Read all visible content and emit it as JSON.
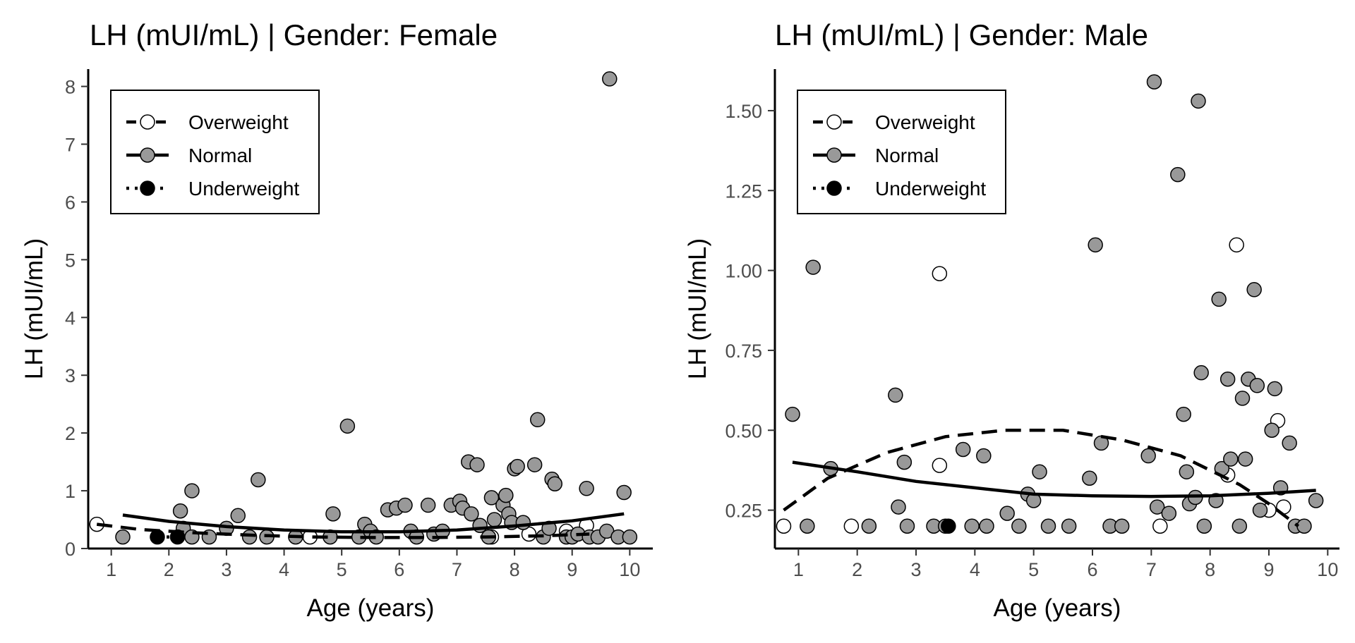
{
  "figure": {
    "colors": {
      "overweight": "#ffffff",
      "normal": "#999999",
      "underweight": "#000000",
      "point_stroke": "#000000"
    },
    "legend_placement": "top-left"
  },
  "chart_data": [
    {
      "type": "scatter",
      "title": "LH (mUI/mL) | Gender: Female",
      "xlabel": "Age (years)",
      "ylabel": "LH (mUI/mL)",
      "xlim": [
        0.6,
        10.4
      ],
      "ylim": [
        0,
        8.3
      ],
      "x_ticks": [
        1,
        2,
        3,
        4,
        5,
        6,
        7,
        8,
        9,
        10
      ],
      "y_ticks": [
        0,
        1,
        2,
        3,
        4,
        5,
        6,
        7,
        8
      ],
      "y_tick_labels": [
        "0",
        "1",
        "2",
        "3",
        "4",
        "5",
        "6",
        "7",
        "8"
      ],
      "grid": false,
      "legend": {
        "placement": "top-left",
        "entries": [
          "Overweight",
          "Normal",
          "Underweight"
        ]
      },
      "series": [
        {
          "name": "Overweight",
          "fill": "#ffffff",
          "line_style": "dashed",
          "points": [
            [
              0.75,
              0.42
            ],
            [
              4.45,
              0.2
            ],
            [
              7.6,
              0.2
            ],
            [
              8.25,
              0.25
            ],
            [
              8.9,
              0.3
            ],
            [
              9.25,
              0.4
            ]
          ],
          "trend": [
            [
              0.75,
              0.42
            ],
            [
              1.5,
              0.33
            ],
            [
              2.5,
              0.27
            ],
            [
              3.5,
              0.23
            ],
            [
              4.5,
              0.2
            ],
            [
              5.5,
              0.19
            ],
            [
              6.5,
              0.19
            ],
            [
              7.5,
              0.2
            ],
            [
              8.5,
              0.22
            ],
            [
              9.3,
              0.25
            ]
          ]
        },
        {
          "name": "Normal",
          "fill": "#999999",
          "line_style": "solid",
          "points": [
            [
              1.2,
              0.2
            ],
            [
              2.2,
              0.65
            ],
            [
              2.25,
              0.35
            ],
            [
              2.4,
              1.0
            ],
            [
              2.4,
              0.2
            ],
            [
              2.7,
              0.2
            ],
            [
              3.0,
              0.35
            ],
            [
              3.2,
              0.57
            ],
            [
              3.4,
              0.2
            ],
            [
              3.55,
              1.19
            ],
            [
              3.7,
              0.2
            ],
            [
              4.2,
              0.2
            ],
            [
              4.8,
              0.2
            ],
            [
              4.85,
              0.6
            ],
            [
              5.1,
              2.12
            ],
            [
              5.3,
              0.2
            ],
            [
              5.4,
              0.42
            ],
            [
              5.5,
              0.3
            ],
            [
              5.6,
              0.2
            ],
            [
              5.8,
              0.67
            ],
            [
              5.95,
              0.7
            ],
            [
              6.1,
              0.75
            ],
            [
              6.2,
              0.3
            ],
            [
              6.3,
              0.2
            ],
            [
              6.5,
              0.75
            ],
            [
              6.6,
              0.25
            ],
            [
              6.75,
              0.3
            ],
            [
              6.9,
              0.75
            ],
            [
              7.05,
              0.82
            ],
            [
              7.1,
              0.7
            ],
            [
              7.2,
              1.5
            ],
            [
              7.25,
              0.6
            ],
            [
              7.35,
              1.45
            ],
            [
              7.4,
              0.4
            ],
            [
              7.55,
              0.2
            ],
            [
              7.6,
              0.88
            ],
            [
              7.65,
              0.5
            ],
            [
              7.8,
              0.75
            ],
            [
              7.85,
              0.92
            ],
            [
              7.9,
              0.6
            ],
            [
              7.95,
              0.45
            ],
            [
              8.0,
              1.38
            ],
            [
              8.05,
              1.42
            ],
            [
              8.15,
              0.45
            ],
            [
              8.35,
              1.45
            ],
            [
              8.4,
              2.23
            ],
            [
              8.5,
              0.2
            ],
            [
              8.6,
              0.35
            ],
            [
              8.65,
              1.2
            ],
            [
              8.7,
              1.12
            ],
            [
              8.9,
              0.2
            ],
            [
              9.0,
              0.2
            ],
            [
              9.1,
              0.25
            ],
            [
              9.25,
              1.04
            ],
            [
              9.3,
              0.2
            ],
            [
              9.45,
              0.2
            ],
            [
              9.6,
              0.3
            ],
            [
              9.65,
              8.13
            ],
            [
              9.8,
              0.2
            ],
            [
              9.9,
              0.97
            ],
            [
              10.0,
              0.2
            ]
          ],
          "trend": [
            [
              1.2,
              0.58
            ],
            [
              2.0,
              0.47
            ],
            [
              3.0,
              0.38
            ],
            [
              4.0,
              0.32
            ],
            [
              5.0,
              0.29
            ],
            [
              6.0,
              0.29
            ],
            [
              7.0,
              0.32
            ],
            [
              8.0,
              0.39
            ],
            [
              9.0,
              0.48
            ],
            [
              9.9,
              0.6
            ]
          ]
        },
        {
          "name": "Underweight",
          "fill": "#000000",
          "line_style": "dotted",
          "points": [
            [
              1.8,
              0.2
            ],
            [
              2.15,
              0.2
            ]
          ],
          "trend": [
            [
              1.8,
              0.2
            ],
            [
              2.2,
              0.2
            ]
          ]
        }
      ]
    },
    {
      "type": "scatter",
      "title": "LH (mUI/mL) | Gender: Male",
      "xlabel": "Age (years)",
      "ylabel": "LH (mUI/mL)",
      "xlim": [
        0.6,
        10.2
      ],
      "ylim": [
        0.13,
        1.63
      ],
      "x_ticks": [
        1,
        2,
        3,
        4,
        5,
        6,
        7,
        8,
        9,
        10
      ],
      "y_ticks": [
        0.25,
        0.5,
        0.75,
        1.0,
        1.25,
        1.5
      ],
      "y_tick_labels": [
        "0.25",
        "0.50",
        "0.75",
        "1.00",
        "1.25",
        "1.50"
      ],
      "grid": false,
      "legend": {
        "placement": "top-left",
        "entries": [
          "Overweight",
          "Normal",
          "Underweight"
        ]
      },
      "series": [
        {
          "name": "Overweight",
          "fill": "#ffffff",
          "line_style": "dashed",
          "points": [
            [
              0.75,
              0.2
            ],
            [
              1.9,
              0.2
            ],
            [
              3.4,
              0.99
            ],
            [
              3.4,
              0.39
            ],
            [
              7.15,
              0.2
            ],
            [
              8.3,
              0.36
            ],
            [
              8.45,
              1.08
            ],
            [
              9.0,
              0.25
            ],
            [
              9.15,
              0.53
            ],
            [
              9.25,
              0.26
            ]
          ],
          "trend": [
            [
              0.75,
              0.25
            ],
            [
              1.5,
              0.35
            ],
            [
              2.5,
              0.43
            ],
            [
              3.5,
              0.48
            ],
            [
              4.5,
              0.5
            ],
            [
              5.5,
              0.5
            ],
            [
              6.5,
              0.47
            ],
            [
              7.5,
              0.42
            ],
            [
              8.5,
              0.33
            ],
            [
              9.0,
              0.27
            ],
            [
              9.5,
              0.2
            ]
          ]
        },
        {
          "name": "Normal",
          "fill": "#999999",
          "line_style": "solid",
          "points": [
            [
              0.9,
              0.55
            ],
            [
              1.15,
              0.2
            ],
            [
              1.25,
              1.01
            ],
            [
              1.55,
              0.38
            ],
            [
              2.2,
              0.2
            ],
            [
              2.65,
              0.61
            ],
            [
              2.7,
              0.26
            ],
            [
              2.8,
              0.4
            ],
            [
              2.85,
              0.2
            ],
            [
              3.3,
              0.2
            ],
            [
              3.5,
              0.2
            ],
            [
              3.8,
              0.44
            ],
            [
              3.95,
              0.2
            ],
            [
              4.15,
              0.42
            ],
            [
              4.2,
              0.2
            ],
            [
              4.55,
              0.24
            ],
            [
              4.75,
              0.2
            ],
            [
              4.9,
              0.3
            ],
            [
              5.0,
              0.28
            ],
            [
              5.1,
              0.37
            ],
            [
              5.25,
              0.2
            ],
            [
              5.6,
              0.2
            ],
            [
              5.95,
              0.35
            ],
            [
              6.05,
              1.08
            ],
            [
              6.15,
              0.46
            ],
            [
              6.3,
              0.2
            ],
            [
              6.5,
              0.2
            ],
            [
              6.95,
              0.42
            ],
            [
              7.05,
              1.59
            ],
            [
              7.1,
              0.26
            ],
            [
              7.3,
              0.24
            ],
            [
              7.45,
              1.3
            ],
            [
              7.55,
              0.55
            ],
            [
              7.6,
              0.37
            ],
            [
              7.65,
              0.27
            ],
            [
              7.75,
              0.29
            ],
            [
              7.8,
              1.53
            ],
            [
              7.85,
              0.68
            ],
            [
              7.9,
              0.2
            ],
            [
              8.1,
              0.28
            ],
            [
              8.15,
              0.91
            ],
            [
              8.2,
              0.38
            ],
            [
              8.3,
              0.66
            ],
            [
              8.35,
              0.41
            ],
            [
              8.5,
              0.2
            ],
            [
              8.55,
              0.6
            ],
            [
              8.6,
              0.41
            ],
            [
              8.65,
              0.66
            ],
            [
              8.75,
              0.94
            ],
            [
              8.8,
              0.64
            ],
            [
              8.85,
              0.25
            ],
            [
              9.05,
              0.5
            ],
            [
              9.1,
              0.63
            ],
            [
              9.2,
              0.32
            ],
            [
              9.35,
              0.46
            ],
            [
              9.45,
              0.2
            ],
            [
              9.6,
              0.2
            ],
            [
              9.8,
              0.28
            ]
          ],
          "trend": [
            [
              0.9,
              0.4
            ],
            [
              2.0,
              0.37
            ],
            [
              3.0,
              0.34
            ],
            [
              4.0,
              0.32
            ],
            [
              5.0,
              0.3
            ],
            [
              6.0,
              0.295
            ],
            [
              7.0,
              0.293
            ],
            [
              8.0,
              0.295
            ],
            [
              9.0,
              0.303
            ],
            [
              9.8,
              0.312
            ]
          ]
        },
        {
          "name": "Underweight",
          "fill": "#000000",
          "line_style": "dotted",
          "points": [
            [
              3.55,
              0.2
            ]
          ],
          "trend": []
        }
      ]
    }
  ]
}
